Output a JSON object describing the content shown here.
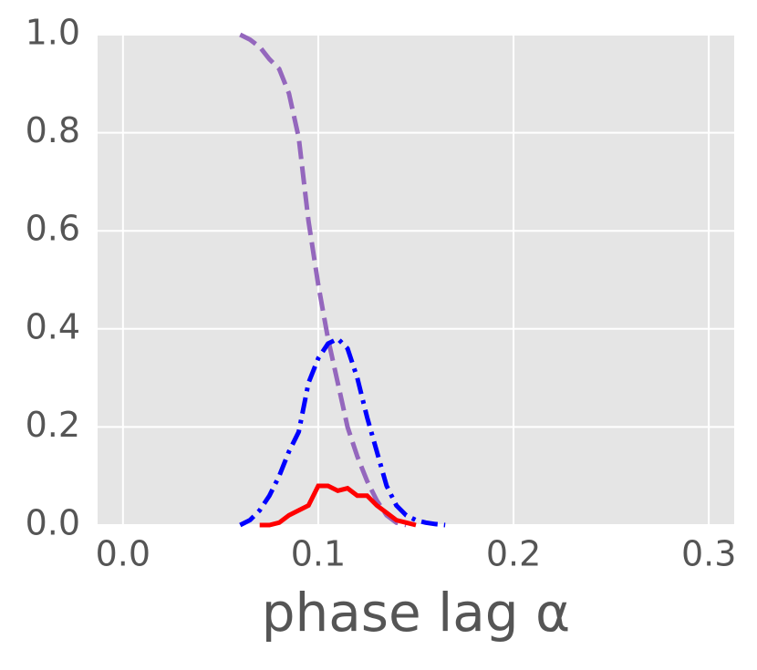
{
  "chart_data": {
    "type": "line",
    "x_label": "phase lag α",
    "xlim": [
      -0.013,
      0.313
    ],
    "ylim": [
      0,
      1
    ],
    "xticks": [
      {
        "value": 0,
        "label": "0.0"
      },
      0.1,
      0.2,
      0.3
    ],
    "yticks": [
      {
        "value": 0,
        "label": "0.0"
      },
      0.2,
      0.4,
      0.6,
      0.8,
      {
        "value": 1,
        "label": "1.0"
      }
    ],
    "grid": true,
    "series": [
      {
        "color": "#9467bd",
        "linestyle": "dashed",
        "x": [
          0.06,
          0.065,
          0.07,
          0.075,
          0.08,
          0.085,
          0.09,
          0.095,
          0.1,
          0.105,
          0.11,
          0.115,
          0.12,
          0.125,
          0.13,
          0.135,
          0.14,
          0.145
        ],
        "values": [
          1.0,
          0.99,
          0.975,
          0.95,
          0.93,
          0.88,
          0.79,
          0.62,
          0.49,
          0.38,
          0.29,
          0.2,
          0.14,
          0.09,
          0.05,
          0.02,
          0.005,
          0
        ]
      },
      {
        "color": "#0000ff",
        "linestyle": "dashdot",
        "x": [
          0.06,
          0.065,
          0.07,
          0.075,
          0.08,
          0.085,
          0.09,
          0.095,
          0.1,
          0.105,
          0.11,
          0.115,
          0.12,
          0.125,
          0.13,
          0.135,
          0.14,
          0.145,
          0.15,
          0.155,
          0.16,
          0.165
        ],
        "values": [
          0,
          0.01,
          0.03,
          0.06,
          0.1,
          0.15,
          0.19,
          0.29,
          0.34,
          0.37,
          0.38,
          0.36,
          0.3,
          0.22,
          0.15,
          0.08,
          0.04,
          0.02,
          0.01,
          0.005,
          0.002,
          0
        ]
      },
      {
        "color": "#ff0000",
        "linestyle": "solid",
        "x": [
          0.07,
          0.075,
          0.08,
          0.085,
          0.09,
          0.095,
          0.1,
          0.105,
          0.11,
          0.115,
          0.12,
          0.125,
          0.13,
          0.135,
          0.14,
          0.145,
          0.15
        ],
        "values": [
          0,
          0,
          0.005,
          0.02,
          0.03,
          0.04,
          0.08,
          0.08,
          0.07,
          0.075,
          0.06,
          0.06,
          0.04,
          0.025,
          0.01,
          0.005,
          0
        ]
      }
    ]
  }
}
